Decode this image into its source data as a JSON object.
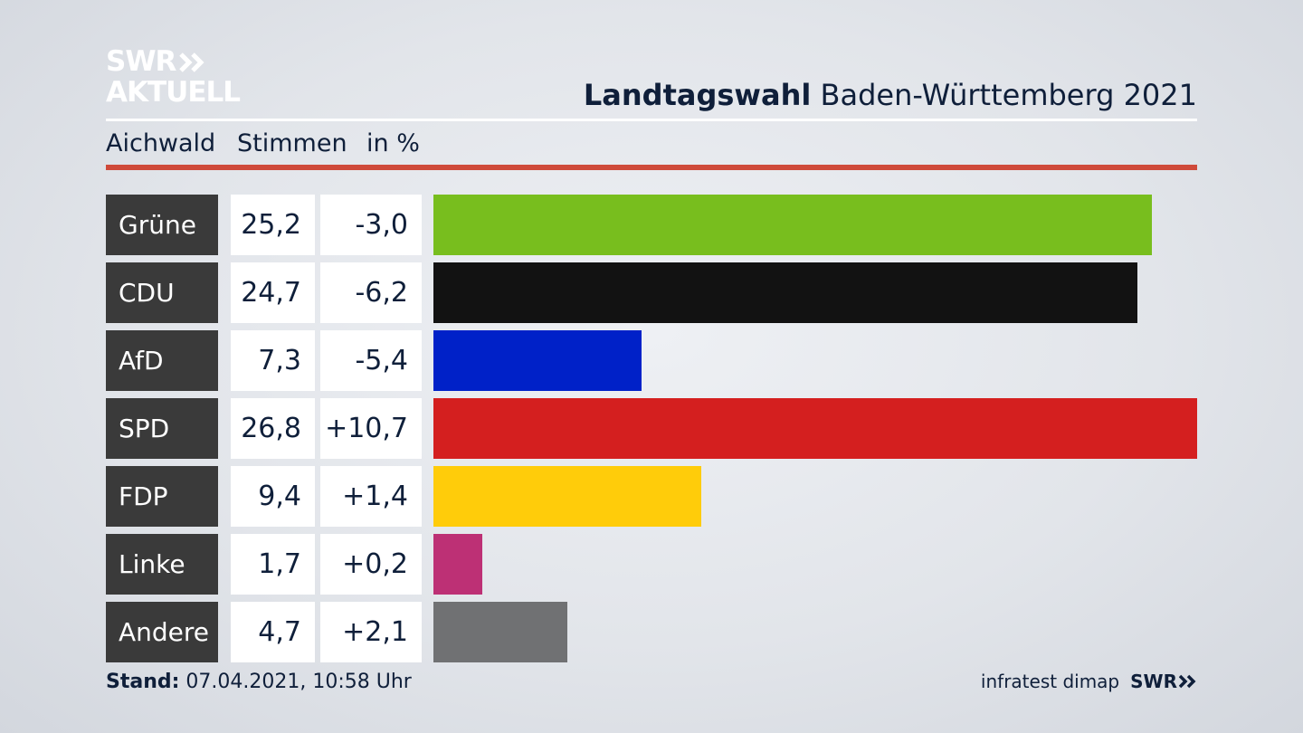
{
  "logo": {
    "line1": "SWR",
    "line2": "AKTUELL"
  },
  "title": {
    "bold": "Landtagswahl",
    "rest": " Baden-Württemberg 2021"
  },
  "subheader": {
    "place": "Aichwald",
    "col1": "Stimmen",
    "col2": "in %"
  },
  "colors": {
    "accent_rule": "#cf4a3a",
    "label_bg": "#3a3a3a"
  },
  "chart_data": {
    "type": "bar",
    "orientation": "horizontal",
    "categories": [
      "Grüne",
      "CDU",
      "AfD",
      "SPD",
      "FDP",
      "Linke",
      "Andere"
    ],
    "values": [
      25.2,
      24.7,
      7.3,
      26.8,
      9.4,
      1.7,
      4.7
    ],
    "values_label": [
      "25,2",
      "24,7",
      "7,3",
      "26,8",
      "9,4",
      "1,7",
      "4,7"
    ],
    "change_label": [
      "-3,0",
      "-6,2",
      "-5,4",
      "+10,7",
      "+1,4",
      "+0,2",
      "+2,1"
    ],
    "colors": [
      "#78be1e",
      "#121212",
      "#0021c8",
      "#d41f1f",
      "#ffcc0a",
      "#bd3075",
      "#707173"
    ],
    "xlim": [
      0,
      26.8
    ]
  },
  "footer": {
    "stand_label": "Stand:",
    "stand_value": " 07.04.2021, 10:58 Uhr"
  },
  "source": {
    "institute": "infratest dimap",
    "brand": "SWR"
  }
}
